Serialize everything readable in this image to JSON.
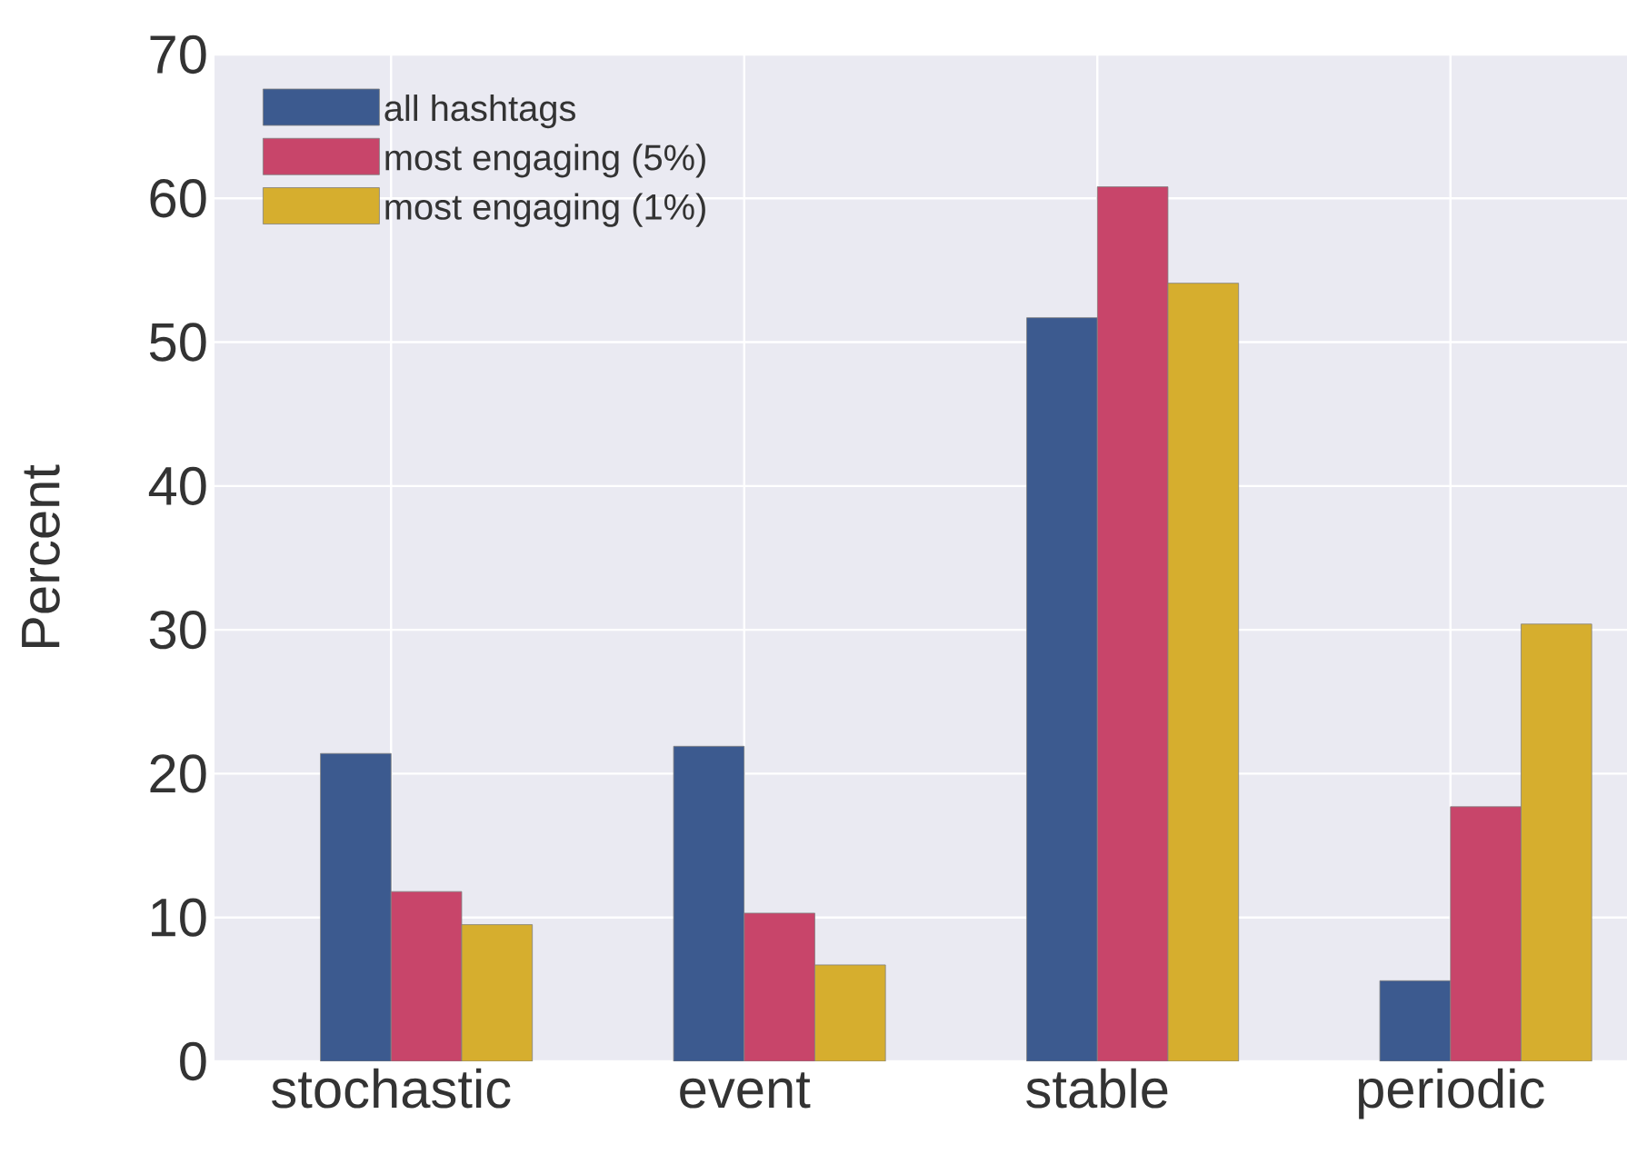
{
  "chart_data": {
    "type": "bar",
    "ylabel": "Percent",
    "categories": [
      "stochastic",
      "event",
      "stable",
      "periodic"
    ],
    "series": [
      {
        "name": "all hashtags",
        "color": "#3c5a8f",
        "values": [
          21.4,
          21.9,
          51.7,
          5.6
        ]
      },
      {
        "name": "most engaging (5%)",
        "color": "#c8456a",
        "values": [
          11.8,
          10.3,
          60.8,
          17.7
        ]
      },
      {
        "name": "most engaging (1%)",
        "color": "#d6ae2e",
        "values": [
          9.5,
          6.7,
          54.1,
          30.4
        ]
      }
    ],
    "ylim": [
      0,
      70
    ],
    "yticks": [
      0,
      10,
      20,
      30,
      40,
      50,
      60,
      70
    ],
    "grid": true,
    "legend": "top left"
  }
}
